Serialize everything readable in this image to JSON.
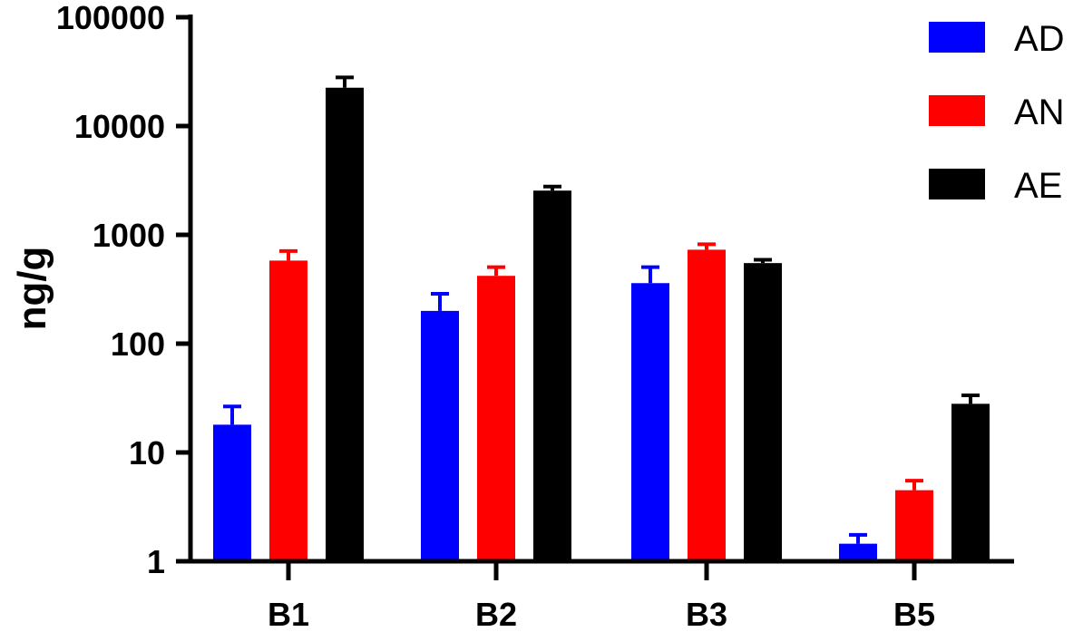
{
  "chart_data": {
    "type": "bar",
    "ylabel": "ng/g",
    "xlabel": "",
    "y_scale": "log",
    "ylim": [
      1,
      100000
    ],
    "y_ticks": [
      "1",
      "10",
      "100",
      "1000",
      "10000",
      "100000"
    ],
    "categories": [
      "B1",
      "B2",
      "B3",
      "B5"
    ],
    "legend_position": "top-right",
    "series": [
      {
        "name": "AD",
        "color": "#0000ff",
        "values": [
          18,
          200,
          360,
          1.45
        ],
        "errors": [
          8.5,
          87,
          145,
          0.3
        ]
      },
      {
        "name": "AN",
        "color": "#ff0000",
        "values": [
          580,
          420,
          730,
          4.5
        ],
        "errors": [
          130,
          85,
          90,
          1.0
        ]
      },
      {
        "name": "AE",
        "color": "#000000",
        "values": [
          22500,
          2550,
          550,
          28
        ],
        "errors": [
          5500,
          230,
          40,
          5.5
        ]
      }
    ]
  }
}
